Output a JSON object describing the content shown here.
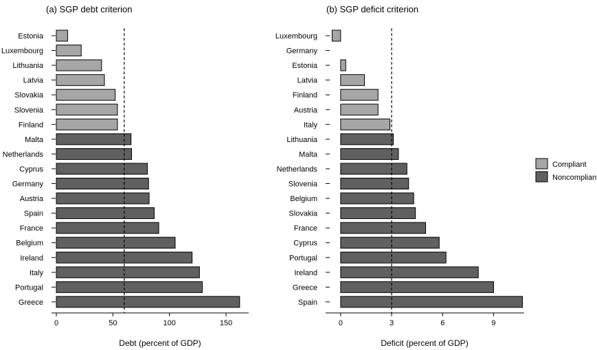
{
  "colors": {
    "compliant": "#a6a6a6",
    "noncompliant": "#606060",
    "bar_stroke": "#000000"
  },
  "legend": {
    "placement": "right",
    "items": [
      "Compliant",
      "Noncompliant"
    ]
  },
  "chart_data": [
    {
      "type": "bar",
      "orientation": "horizontal",
      "title": "(a) SGP debt criterion",
      "xlabel": "Debt (percent of GDP)",
      "ylabel": "",
      "xlim": [
        0,
        170
      ],
      "xticks": [
        0,
        50,
        100,
        150
      ],
      "threshold": 60,
      "threshold_style": "dashed",
      "grid": false,
      "categories": [
        "Estonia",
        "Luxembourg",
        "Lithuania",
        "Latvia",
        "Slovakia",
        "Slovenia",
        "Finland",
        "Malta",
        "Netherlands",
        "Cyprus",
        "Germany",
        "Austria",
        "Spain",
        "France",
        "Belgium",
        "Ireland",
        "Italy",
        "Portugal",
        "Greece"
      ],
      "values": [
        10,
        22,
        40,
        42.5,
        52,
        54,
        54,
        66,
        66.5,
        80.5,
        81.5,
        82,
        86.5,
        90.5,
        105,
        120,
        126.5,
        129,
        162
      ],
      "status": [
        "Compliant",
        "Compliant",
        "Compliant",
        "Compliant",
        "Compliant",
        "Compliant",
        "Compliant",
        "Noncompliant",
        "Noncompliant",
        "Noncompliant",
        "Noncompliant",
        "Noncompliant",
        "Noncompliant",
        "Noncompliant",
        "Noncompliant",
        "Noncompliant",
        "Noncompliant",
        "Noncompliant",
        "Noncompliant"
      ]
    },
    {
      "type": "bar",
      "orientation": "horizontal",
      "title": "(b) SGP deficit criterion",
      "xlabel": "Deficit (percent of GDP)",
      "ylabel": "",
      "xlim": [
        -0.6,
        10.8
      ],
      "xticks": [
        0,
        3,
        6,
        9
      ],
      "threshold": 3,
      "threshold_style": "dashed",
      "grid": false,
      "categories": [
        "Luxembourg",
        "Germany",
        "Estonia",
        "Latvia",
        "Finland",
        "Austria",
        "Italy",
        "Lithuania",
        "Malta",
        "Netherlands",
        "Slovenia",
        "Belgium",
        "Slovakia",
        "France",
        "Cyprus",
        "Portugal",
        "Ireland",
        "Greece",
        "Spain"
      ],
      "values": [
        -0.5,
        0,
        0.3,
        1.4,
        2.2,
        2.2,
        2.9,
        3.1,
        3.4,
        3.9,
        4.0,
        4.3,
        4.4,
        5.0,
        5.8,
        6.2,
        8.1,
        9.0,
        10.7
      ],
      "status": [
        "Compliant",
        "Compliant",
        "Compliant",
        "Compliant",
        "Compliant",
        "Compliant",
        "Compliant",
        "Noncompliant",
        "Noncompliant",
        "Noncompliant",
        "Noncompliant",
        "Noncompliant",
        "Noncompliant",
        "Noncompliant",
        "Noncompliant",
        "Noncompliant",
        "Noncompliant",
        "Noncompliant",
        "Noncompliant"
      ]
    }
  ]
}
